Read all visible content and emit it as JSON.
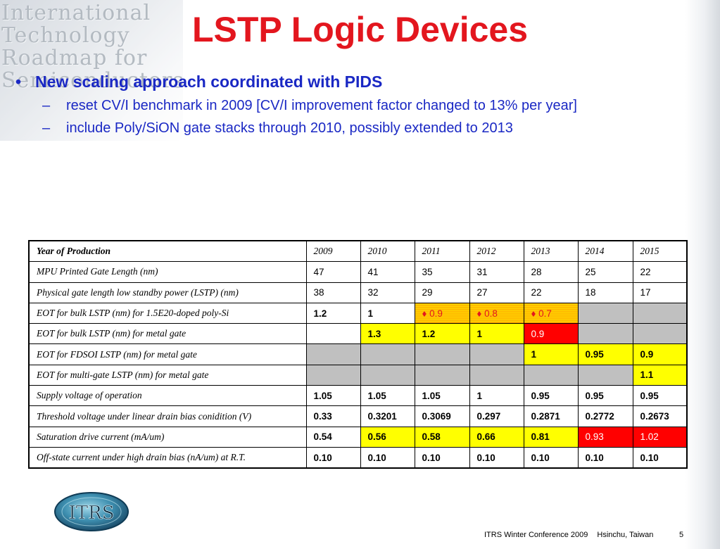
{
  "header_art": {
    "lines": [
      "International",
      "Technology",
      "Roadmap for",
      "Semiconductors"
    ]
  },
  "slide": {
    "title": "LSTP Logic Devices",
    "bullet_main": "New scaling approach coordinated with PIDS",
    "sub_bullets": [
      "reset CV/I benchmark in 2009 [CV/I improvement factor changed to 13% per year]",
      "include Poly/SiON gate stacks through 2010, possibly extended to 2013"
    ]
  },
  "table": {
    "header": {
      "label": "Year of Production",
      "years": [
        "2009",
        "2010",
        "2011",
        "2012",
        "2013",
        "2014",
        "2015"
      ]
    },
    "rows": [
      {
        "label": "MPU Printed Gate Length (nm)",
        "values": [
          "47",
          "41",
          "35",
          "31",
          "28",
          "25",
          "22"
        ],
        "fills": [
          "",
          "",
          "",
          "",
          "",
          "",
          ""
        ],
        "bold": false
      },
      {
        "label": "Physical gate length low standby power (LSTP) (nm)",
        "values": [
          "38",
          "32",
          "29",
          "27",
          "22",
          "18",
          "17"
        ],
        "fills": [
          "",
          "",
          "",
          "",
          "",
          "",
          ""
        ],
        "bold": false
      },
      {
        "label": "EOT for bulk LSTP (nm) for 1.5E20-doped poly-Si",
        "values": [
          "1.2",
          "1",
          "♦ 0.9",
          "♦ 0.8",
          "♦ 0.7",
          "",
          ""
        ],
        "fills": [
          "",
          "",
          "hatch",
          "hatch",
          "hatch",
          "gray",
          "gray"
        ],
        "bold": true
      },
      {
        "label": "EOT for bulk LSTP (nm) for metal gate",
        "values": [
          "",
          "1.3",
          "1.2",
          "1",
          "0.9",
          "",
          ""
        ],
        "fills": [
          "",
          "yellow",
          "yellow",
          "yellow",
          "red",
          "gray",
          "gray"
        ],
        "bold": true
      },
      {
        "label": "EOT for FDSOI LSTP (nm) for metal gate",
        "values": [
          "",
          "",
          "",
          "",
          "1",
          "0.95",
          "0.9"
        ],
        "fills": [
          "gray",
          "gray",
          "gray",
          "gray",
          "yellow",
          "yellow",
          "yellow"
        ],
        "bold": true
      },
      {
        "label": "EOT for multi-gate LSTP (nm) for metal gate",
        "values": [
          "",
          "",
          "",
          "",
          "",
          "",
          "1.1"
        ],
        "fills": [
          "gray",
          "gray",
          "gray",
          "gray",
          "gray",
          "gray",
          "yellow"
        ],
        "bold": true
      },
      {
        "label": "Supply voltage of operation",
        "values": [
          "1.05",
          "1.05",
          "1.05",
          "1",
          "0.95",
          "0.95",
          "0.95"
        ],
        "fills": [
          "",
          "",
          "",
          "",
          "",
          "",
          ""
        ],
        "bold": true
      },
      {
        "label": "Threshold voltage under linear drain bias conidition (V)",
        "values": [
          "0.33",
          "0.3201",
          "0.3069",
          "0.297",
          "0.2871",
          "0.2772",
          "0.2673"
        ],
        "fills": [
          "",
          "",
          "",
          "",
          "",
          "",
          ""
        ],
        "bold": true
      },
      {
        "label": "Saturation drive current (mA/um)",
        "values": [
          "0.54",
          "0.56",
          "0.58",
          "0.66",
          "0.81",
          "0.93",
          "1.02"
        ],
        "fills": [
          "",
          "yellow",
          "yellow",
          "yellow",
          "yellow",
          "red",
          "red"
        ],
        "bold": true
      },
      {
        "label": "Off-state current under high drain bias (nA/um) at R.T.",
        "values": [
          "0.10",
          "0.10",
          "0.10",
          "0.10",
          "0.10",
          "0.10",
          "0.10"
        ],
        "fills": [
          "",
          "",
          "",
          "",
          "",
          "",
          ""
        ],
        "bold": true
      }
    ]
  },
  "logo": {
    "text": "ITRS"
  },
  "footer": {
    "conference": "ITRS Winter Conference 2009",
    "location": "Hsinchu, Taiwan",
    "page": "5"
  },
  "colors": {
    "title": "#e3161e",
    "bullet_text": "#1a28c4",
    "cell_yellow": "#ffff00",
    "cell_red": "#ff0000",
    "cell_gray": "#c0c0c0",
    "cell_hatch": "#ffd400"
  }
}
